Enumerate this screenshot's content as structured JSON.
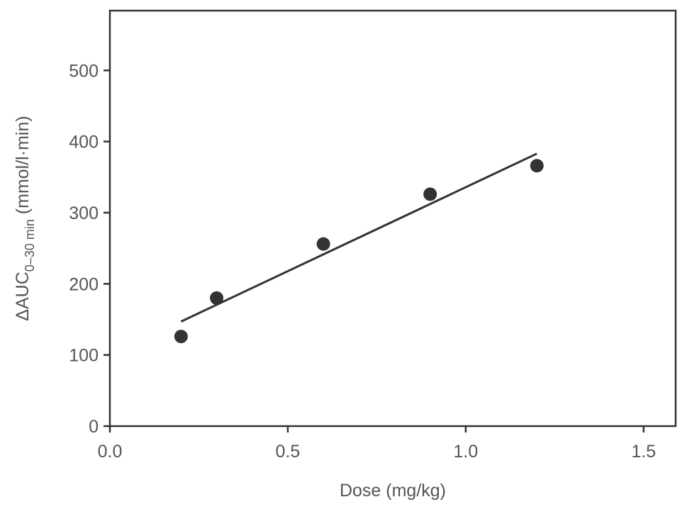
{
  "chart_data": {
    "type": "scatter",
    "xlabel": "Dose (mg/kg)",
    "ylabel": {
      "main": "ΔAUC",
      "subscript": "0–30 min",
      "unit": " (mmol/l·min)"
    },
    "xlim": [
      0,
      1.59
    ],
    "ylim": [
      0,
      584
    ],
    "xticks": [
      0.0,
      0.5,
      1.0,
      1.5
    ],
    "xtick_labels": [
      "0.0",
      "0.5",
      "1.0",
      "1.5"
    ],
    "yticks": [
      0,
      100,
      200,
      300,
      400,
      500
    ],
    "ytick_labels": [
      "0",
      "100",
      "200",
      "300",
      "400",
      "500"
    ],
    "grid": false,
    "points": {
      "x": [
        0.2,
        0.3,
        0.6,
        0.9,
        1.2
      ],
      "y": [
        126,
        180,
        256,
        326,
        366
      ]
    },
    "fit_line": {
      "x": [
        0.2,
        1.2
      ],
      "y": [
        147,
        383
      ]
    },
    "colors": {
      "points": "#333333",
      "line": "#333333",
      "axis": "#333333",
      "text": "#555555"
    }
  }
}
